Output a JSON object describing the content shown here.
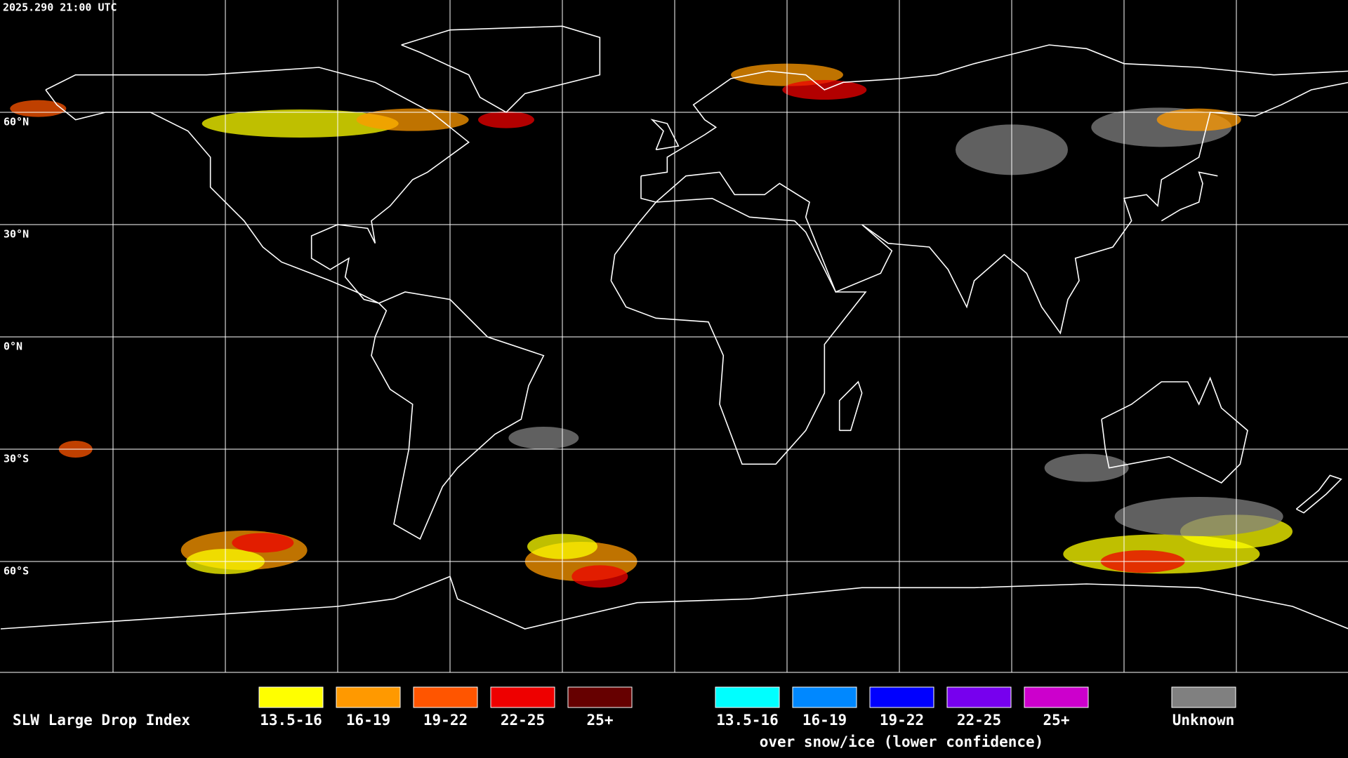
{
  "timestamp": "2025.290 21:00 UTC",
  "map": {
    "latitude_labels": [
      "60°N",
      "30°N",
      "0°N",
      "30°S",
      "60°S"
    ]
  },
  "legend": {
    "title": "SLW Large Drop Index",
    "standard": [
      {
        "label": "13.5-16",
        "color": "#ffff00"
      },
      {
        "label": "16-19",
        "color": "#ff9900"
      },
      {
        "label": "19-22",
        "color": "#ff5500"
      },
      {
        "label": "22-25",
        "color": "#ee0000"
      },
      {
        "label": "25+",
        "color": "#660000"
      }
    ],
    "snow_ice": [
      {
        "label": "13.5-16",
        "color": "#00ffff"
      },
      {
        "label": "16-19",
        "color": "#0088ff"
      },
      {
        "label": "19-22",
        "color": "#0000ff"
      },
      {
        "label": "22-25",
        "color": "#7700ee"
      },
      {
        "label": "25+",
        "color": "#cc00cc"
      }
    ],
    "snow_ice_note": "over snow/ice (lower confidence)",
    "unknown": {
      "label": "Unknown",
      "color": "#808080"
    }
  }
}
